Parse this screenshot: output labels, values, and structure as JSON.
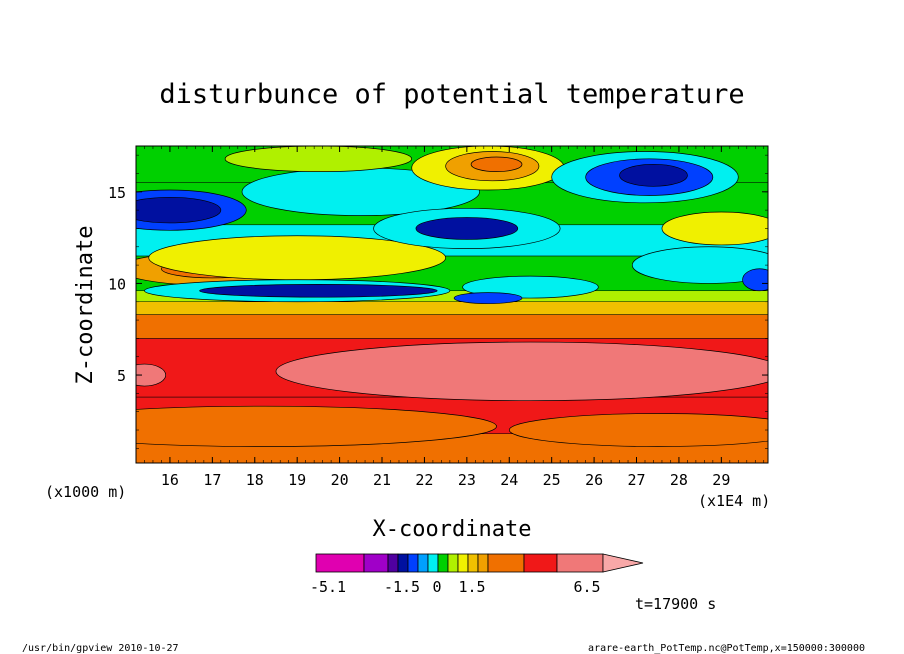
{
  "chart_data": {
    "type": "heatmap",
    "title": "disturbunce of potential temperature",
    "xlabel": "X-coordinate",
    "ylabel": "Z-coordinate",
    "x_unit_left": "(x1000 m)",
    "x_unit_right": "(x1E4 m)",
    "x_ticks": [
      16,
      17,
      18,
      19,
      20,
      21,
      22,
      23,
      24,
      25,
      26,
      27,
      28,
      29
    ],
    "y_ticks": [
      5,
      10,
      15
    ],
    "xlim": [
      15.2,
      30.1
    ],
    "ylim": [
      0.2,
      17.5
    ],
    "colorbar_labels": [
      "-5.1",
      "-1.5",
      "0",
      "1.5",
      "6.5"
    ],
    "colorbar_colors": [
      "#e000b0",
      "#a000c8",
      "#5000a0",
      "#0010a0",
      "#0040ff",
      "#00a0ff",
      "#00f0f0",
      "#00d000",
      "#b0f000",
      "#f0f000",
      "#f0c000",
      "#f0a000",
      "#f07000",
      "#f01818",
      "#f07878",
      "#f8a8a8"
    ],
    "time_label": "t=17900 s",
    "footer_left": "/usr/bin/gpview   2010-10-27",
    "footer_right": "arare-earth_PotTemp.nc@PotTemp,x=150000:300000",
    "bands": [
      {
        "z": [
          0.2,
          1.8
        ],
        "color": "#f07000"
      },
      {
        "z": [
          1.8,
          3.8
        ],
        "color": "#f01818"
      },
      {
        "z": [
          3.8,
          7.0
        ],
        "color": "#f01818"
      },
      {
        "z": [
          7.0,
          8.3
        ],
        "color": "#f07000"
      },
      {
        "z": [
          8.3,
          9.0
        ],
        "color": "#f0c000"
      },
      {
        "z": [
          9.0,
          9.6
        ],
        "color": "#b0f000"
      },
      {
        "z": [
          9.6,
          11.5
        ],
        "color": "#00d000"
      },
      {
        "z": [
          11.5,
          13.2
        ],
        "color": "#00f0f0"
      },
      {
        "z": [
          13.2,
          15.5
        ],
        "color": "#00d000"
      },
      {
        "z": [
          15.5,
          17.5
        ],
        "color": "#00d000"
      }
    ],
    "blobs": [
      {
        "x": 18.2,
        "z": 2.2,
        "rx": 5.5,
        "rz": 1.1,
        "color": "#f07000"
      },
      {
        "x": 27.5,
        "z": 2.0,
        "rx": 3.5,
        "rz": 0.9,
        "color": "#f07000"
      },
      {
        "x": 24.5,
        "z": 5.2,
        "rx": 6.0,
        "rz": 1.6,
        "color": "#f07878"
      },
      {
        "x": 15.4,
        "z": 5.0,
        "rx": 0.5,
        "rz": 0.6,
        "color": "#f07878"
      },
      {
        "x": 17.0,
        "z": 10.8,
        "rx": 2.2,
        "rz": 0.9,
        "color": "#f0a000"
      },
      {
        "x": 17.0,
        "z": 10.8,
        "rx": 1.2,
        "rz": 0.5,
        "color": "#f07000"
      },
      {
        "x": 19.0,
        "z": 11.4,
        "rx": 3.5,
        "rz": 1.2,
        "color": "#f0f000"
      },
      {
        "x": 19.0,
        "z": 9.6,
        "rx": 3.6,
        "rz": 0.6,
        "color": "#00f0f0"
      },
      {
        "x": 19.5,
        "z": 9.6,
        "rx": 2.8,
        "rz": 0.35,
        "color": "#0010a0"
      },
      {
        "x": 16.0,
        "z": 14.0,
        "rx": 1.8,
        "rz": 1.1,
        "color": "#0040ff"
      },
      {
        "x": 16.0,
        "z": 14.0,
        "rx": 1.2,
        "rz": 0.7,
        "color": "#0010a0"
      },
      {
        "x": 20.5,
        "z": 15.0,
        "rx": 2.8,
        "rz": 1.3,
        "color": "#00f0f0"
      },
      {
        "x": 19.5,
        "z": 16.8,
        "rx": 2.2,
        "rz": 0.7,
        "color": "#b0f000"
      },
      {
        "x": 23.0,
        "z": 13.0,
        "rx": 2.2,
        "rz": 1.1,
        "color": "#00f0f0"
      },
      {
        "x": 23.0,
        "z": 13.0,
        "rx": 1.2,
        "rz": 0.6,
        "color": "#0010a0"
      },
      {
        "x": 23.5,
        "z": 16.3,
        "rx": 1.8,
        "rz": 1.2,
        "color": "#f0f000"
      },
      {
        "x": 23.6,
        "z": 16.4,
        "rx": 1.1,
        "rz": 0.8,
        "color": "#f0a000"
      },
      {
        "x": 23.7,
        "z": 16.5,
        "rx": 0.6,
        "rz": 0.4,
        "color": "#f07000"
      },
      {
        "x": 27.2,
        "z": 15.8,
        "rx": 2.2,
        "rz": 1.4,
        "color": "#00f0f0"
      },
      {
        "x": 27.3,
        "z": 15.8,
        "rx": 1.5,
        "rz": 1.0,
        "color": "#0040ff"
      },
      {
        "x": 27.4,
        "z": 15.9,
        "rx": 0.8,
        "rz": 0.6,
        "color": "#0010a0"
      },
      {
        "x": 29.0,
        "z": 13.0,
        "rx": 1.4,
        "rz": 0.9,
        "color": "#f0f000"
      },
      {
        "x": 28.7,
        "z": 11.0,
        "rx": 1.8,
        "rz": 1.0,
        "color": "#00f0f0"
      },
      {
        "x": 29.9,
        "z": 10.2,
        "rx": 0.4,
        "rz": 0.6,
        "color": "#0040ff"
      },
      {
        "x": 24.5,
        "z": 9.8,
        "rx": 1.6,
        "rz": 0.6,
        "color": "#00f0f0"
      },
      {
        "x": 23.5,
        "z": 9.2,
        "rx": 0.8,
        "rz": 0.3,
        "color": "#0040ff"
      }
    ]
  }
}
